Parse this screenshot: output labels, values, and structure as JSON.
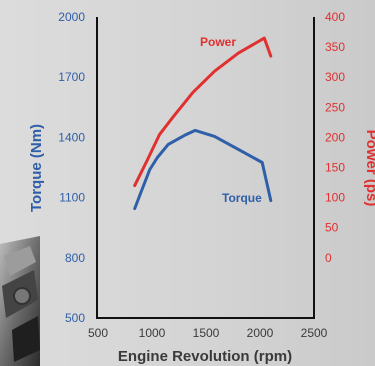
{
  "chart_data": {
    "type": "line",
    "title": "",
    "xlabel": "Engine Revolution (rpm)",
    "ylabel_left": "Torque (Nm)",
    "ylabel_right": "Power (ps)",
    "xlim": [
      500,
      2500
    ],
    "ylim_left": [
      500,
      2000
    ],
    "ylim_right": [
      -100,
      400
    ],
    "x_ticks": [
      "500",
      "1000",
      "1500",
      "2000",
      "2500"
    ],
    "y_left_ticks": [
      "500",
      "800",
      "1100",
      "1400",
      "1700",
      "2000"
    ],
    "y_right_ticks": [
      "0",
      "50",
      "100",
      "150",
      "200",
      "250",
      "300",
      "350",
      "400"
    ],
    "grid": false,
    "legend": "none",
    "series": [
      {
        "name": "Torque",
        "axis": "left",
        "color": "#2f5fa8",
        "x": [
          840,
          900,
          980,
          1050,
          1150,
          1300,
          1400,
          1580,
          1800,
          2020,
          2100
        ],
        "y": [
          1045,
          1130,
          1240,
          1300,
          1365,
          1410,
          1435,
          1405,
          1340,
          1275,
          1085
        ]
      },
      {
        "name": "Power",
        "axis": "right",
        "color": "#e0302f",
        "x": [
          840,
          950,
          1070,
          1200,
          1380,
          1580,
          1800,
          2040,
          2100
        ],
        "y": [
          120,
          160,
          205,
          235,
          275,
          310,
          340,
          365,
          335
        ]
      }
    ]
  }
}
